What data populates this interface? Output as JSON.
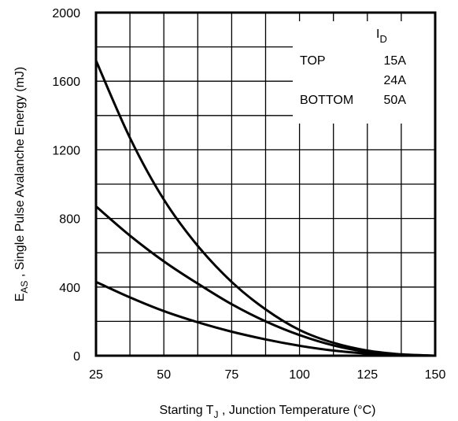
{
  "chart_data": {
    "type": "line",
    "title": "",
    "xlabel": {
      "prefix": "Starting T",
      "sub": "J",
      "suffix": " , Junction Temperature (°C)"
    },
    "ylabel": {
      "prefix": "E",
      "sub": "AS",
      "suffix": " , Single Pulse Avalanche Energy (mJ)"
    },
    "xlim": [
      25,
      150
    ],
    "ylim": [
      0,
      2000
    ],
    "xticks": [
      "25",
      "50",
      "75",
      "100",
      "125",
      "150"
    ],
    "yticks": [
      "0",
      "400",
      "800",
      "1200",
      "1600",
      "2000"
    ],
    "grid": true,
    "legend": {
      "placement": "top-right",
      "header_prefix": "I",
      "header_sub": "D",
      "rows": [
        {
          "label": "TOP",
          "value": "15A"
        },
        {
          "label": "",
          "value": "24A"
        },
        {
          "label": "BOTTOM",
          "value": "50A"
        }
      ]
    },
    "series": [
      {
        "name": "15A",
        "x": [
          25,
          37.5,
          50,
          62.5,
          75,
          87.5,
          100,
          112.5,
          125,
          137.5,
          150
        ],
        "y": [
          1720,
          1270,
          910,
          640,
          430,
          270,
          150,
          75,
          30,
          8,
          0
        ]
      },
      {
        "name": "24A",
        "x": [
          25,
          37.5,
          50,
          62.5,
          75,
          87.5,
          100,
          112.5,
          125,
          137.5,
          150
        ],
        "y": [
          870,
          700,
          550,
          420,
          300,
          200,
          120,
          60,
          22,
          5,
          0
        ]
      },
      {
        "name": "50A",
        "x": [
          25,
          37.5,
          50,
          62.5,
          75,
          87.5,
          100,
          112.5,
          125,
          137.5,
          150
        ],
        "y": [
          430,
          340,
          260,
          195,
          140,
          95,
          58,
          30,
          12,
          3,
          0
        ]
      }
    ]
  }
}
